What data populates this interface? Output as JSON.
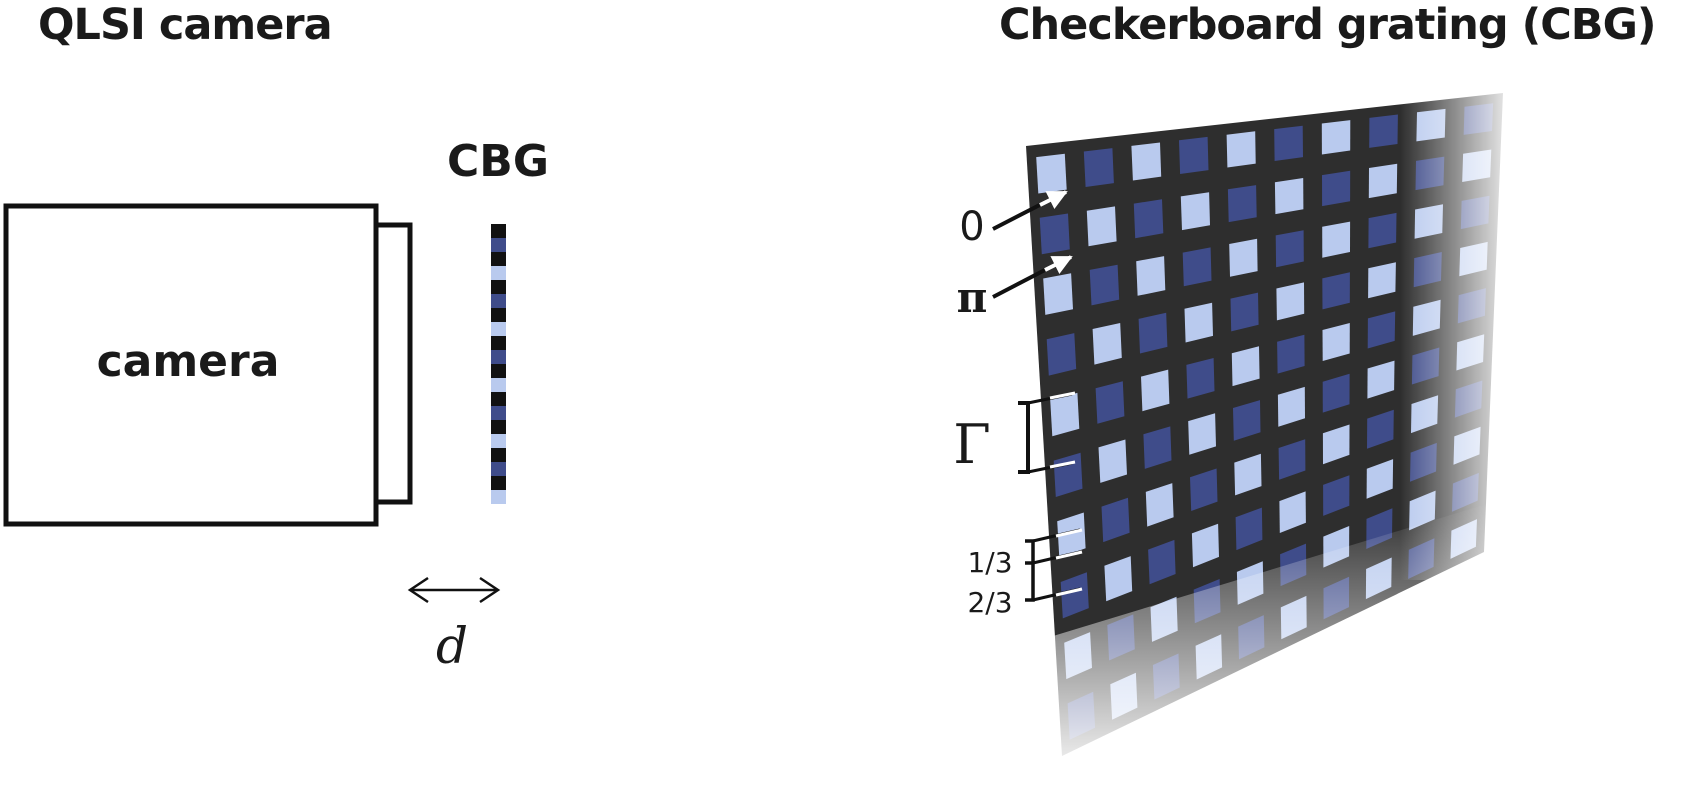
{
  "left_panel": {
    "title": "QLSI camera",
    "camera_label": "camera",
    "grating_label": "CBG",
    "distance_label": "d"
  },
  "right_panel": {
    "title": "Checkerboard grating (CBG)",
    "labels": {
      "phase_zero": "0",
      "phase_pi": "π",
      "period": "Γ",
      "one_third": "1/3",
      "two_thirds": "2/3"
    }
  },
  "colors": {
    "outline": "#111111",
    "grating_background": "#2e2e2e",
    "square_dark": "#3f4c8a",
    "square_light": "#b9caee",
    "text": "#1a1a1a"
  }
}
